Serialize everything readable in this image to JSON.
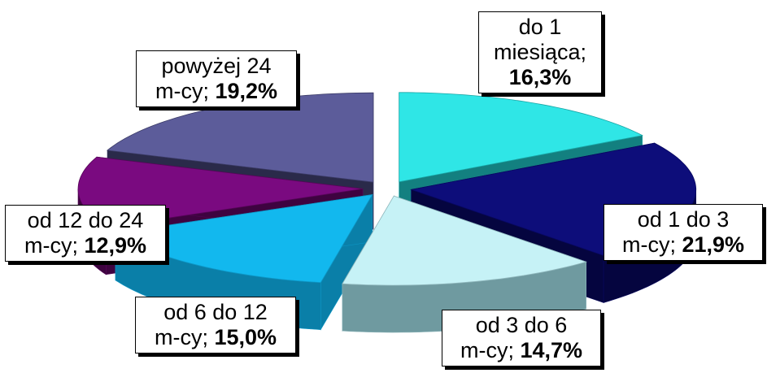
{
  "chart_data": {
    "type": "pie",
    "title": "",
    "start_angle_deg": 90,
    "slices": [
      {
        "line1": "do 1",
        "line2": "miesiąca;",
        "value_text": "16,3%",
        "value": 16.3,
        "top": "#2fe6e6",
        "side": "#138080",
        "edge": "#1aa6a6"
      },
      {
        "line1": "od 1 do 3",
        "line2": "m-cy;",
        "value_text": "21,9%",
        "value": 21.9,
        "top": "#0d0d7a",
        "side": "#05053f",
        "edge": "#080860"
      },
      {
        "line1": "od 3 do 6",
        "line2": "m-cy;",
        "value_text": "14,7%",
        "value": 14.7,
        "top": "#c6f2f6",
        "side": "#6f9aa0",
        "edge": "#8fb7bc"
      },
      {
        "line1": "od 6 do 12",
        "line2": "m-cy;",
        "value_text": "15,0%",
        "value": 15.0,
        "top": "#12b8ee",
        "side": "#0a7fa8",
        "edge": "#0d97c6"
      },
      {
        "line1": "od 12 do 24",
        "line2": "m-cy;",
        "value_text": "12,9%",
        "value": 12.9,
        "top": "#7a0a80",
        "side": "#3e0340",
        "edge": "#560558"
      },
      {
        "line1": "powyżej 24",
        "line2": "m-cy;",
        "value_text": "19,2%",
        "value": 19.2,
        "top": "#5c5c9a",
        "side": "#2a2a4a",
        "edge": "#3b3b66"
      }
    ]
  }
}
